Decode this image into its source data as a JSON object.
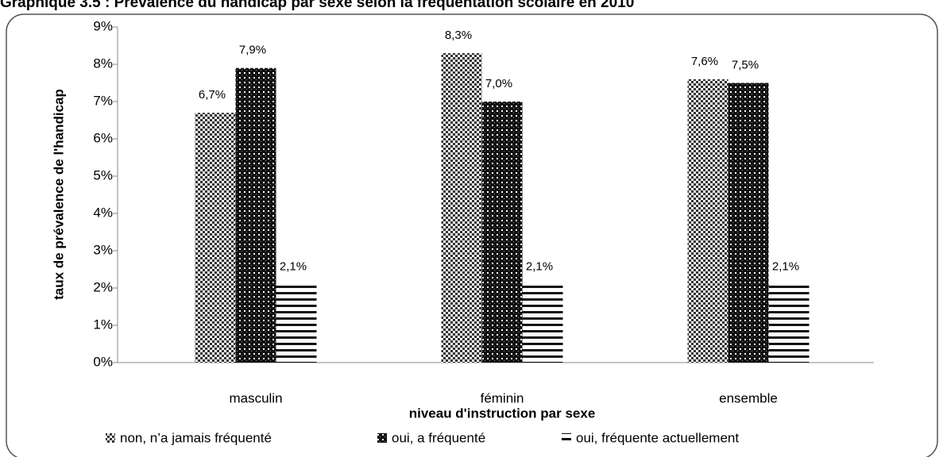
{
  "chart_data": {
    "type": "bar",
    "title": "Graphique 3.5 : Prévalence du handicap par sexe selon la fréquentation scolaire en 2010",
    "categories": [
      "masculin",
      "féminin",
      "ensemble"
    ],
    "series": [
      {
        "name": "non, n’a jamais fréquenté",
        "color": "#555555",
        "values": [
          6.7,
          8.3,
          7.6
        ],
        "value_labels": [
          "6,7%",
          "8,3%",
          "7,6%"
        ]
      },
      {
        "name": "oui, a fréquenté",
        "color": "#111111",
        "values": [
          7.9,
          7.0,
          7.5
        ],
        "value_labels": [
          "7,9%",
          "7,0%",
          "7,5%"
        ]
      },
      {
        "name": "oui, fréquente actuellement",
        "color": "#222222",
        "values": [
          2.1,
          2.1,
          2.1
        ],
        "value_labels": [
          "2,1%",
          "2,1%",
          "2,1%"
        ]
      }
    ],
    "ylim": [
      0,
      9
    ],
    "yticks": [
      {
        "value": 0,
        "label": "0%"
      },
      {
        "value": 1,
        "label": "1%"
      },
      {
        "value": 2,
        "label": "2%"
      },
      {
        "value": 3,
        "label": "3%"
      },
      {
        "value": 4,
        "label": "4%"
      },
      {
        "value": 5,
        "label": "5%"
      },
      {
        "value": 6,
        "label": "6%"
      },
      {
        "value": 7,
        "label": "7%"
      },
      {
        "value": 8,
        "label": "8%"
      },
      {
        "value": 9,
        "label": "9%"
      }
    ],
    "xlabel": "niveau d'instruction par sexe",
    "ylabel": "taux de prévalence de l'handicap",
    "legend": "bottom"
  }
}
